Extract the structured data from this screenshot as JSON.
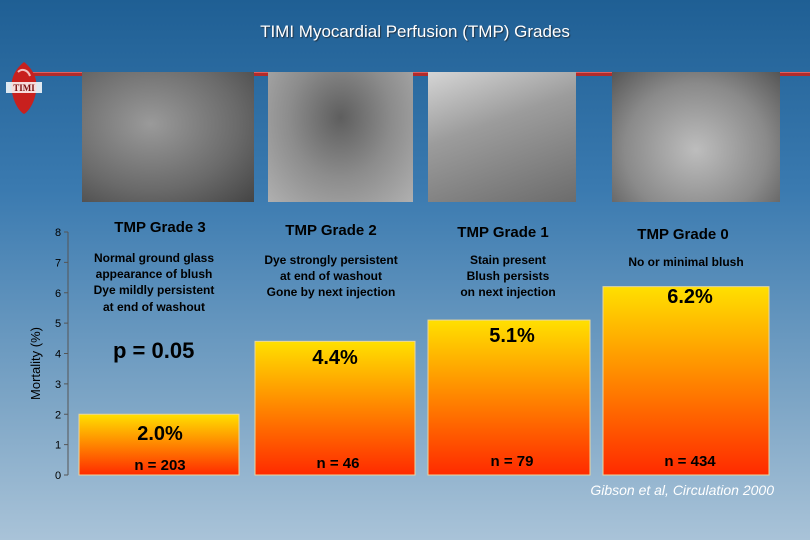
{
  "title": "TIMI Myocardial Perfusion (TMP) Grades",
  "logo_text": "TIMI",
  "source": "Gibson et al, Circulation 2000",
  "pvalue": "p = 0.05",
  "colors": {
    "bar_top": "#ffe000",
    "bar_bottom": "#ff2a00",
    "rule": "#b22b2b"
  },
  "chart_data": {
    "type": "bar",
    "categories": [
      "TMP Grade 3",
      "TMP Grade 2",
      "TMP Grade 1",
      "TMP Grade 0"
    ],
    "values": [
      2.0,
      4.4,
      5.1,
      6.2
    ],
    "value_labels": [
      "2.0%",
      "4.4%",
      "5.1%",
      "6.2%"
    ],
    "n_labels": [
      "n = 203",
      "n = 46",
      "n =  79",
      "n =  434"
    ],
    "descriptions": [
      [
        "Normal ground glass",
        "appearance of blush",
        "Dye mildly persistent",
        "at end of washout"
      ],
      [
        "Dye strongly persistent",
        "at end of washout",
        "Gone by next injection"
      ],
      [
        "Stain present",
        "Blush persists",
        "on next injection"
      ],
      [
        "No or minimal blush"
      ]
    ],
    "ylabel": "Mortality (%)",
    "yticks": [
      0,
      1,
      2,
      3,
      4,
      5,
      6,
      7,
      8
    ],
    "ylim": [
      0,
      8
    ]
  }
}
